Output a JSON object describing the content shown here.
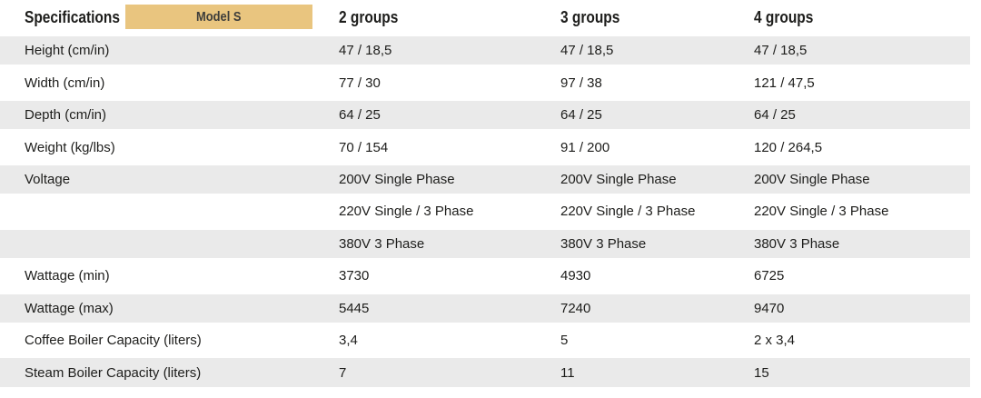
{
  "table": {
    "title": "Specifications",
    "badge_label": "Model S",
    "column_headers": [
      "2 groups",
      "3 groups",
      "4 groups"
    ],
    "rows": [
      {
        "label": "Height (cm/in)",
        "values": [
          "47 / 18,5",
          "47 / 18,5",
          "47 / 18,5"
        ],
        "shaded": true
      },
      {
        "label": "Width (cm/in)",
        "values": [
          "77 / 30",
          "97 / 38",
          "121 / 47,5"
        ],
        "shaded": false
      },
      {
        "label": "Depth (cm/in)",
        "values": [
          "64 / 25",
          "64 / 25",
          "64 / 25"
        ],
        "shaded": true
      },
      {
        "label": "Weight (kg/lbs)",
        "values": [
          "70 / 154",
          "91 / 200",
          "120 / 264,5"
        ],
        "shaded": false
      },
      {
        "label": "Voltage",
        "values": [
          "200V Single Phase",
          "200V Single Phase",
          "200V Single Phase"
        ],
        "shaded": true
      },
      {
        "label": "",
        "values": [
          "220V Single / 3 Phase",
          "220V Single / 3 Phase",
          "220V Single / 3 Phase"
        ],
        "shaded": false
      },
      {
        "label": "",
        "values": [
          "380V 3 Phase",
          "380V 3 Phase",
          "380V 3 Phase"
        ],
        "shaded": true
      },
      {
        "label": "Wattage (min)",
        "values": [
          "3730",
          "4930",
          "6725"
        ],
        "shaded": false
      },
      {
        "label": "Wattage (max)",
        "values": [
          "5445",
          "7240",
          "9470"
        ],
        "shaded": true
      },
      {
        "label": "Coffee Boiler Capacity (liters)",
        "values": [
          "3,4",
          "5",
          "2 x 3,4"
        ],
        "shaded": false
      },
      {
        "label": "Steam Boiler Capacity (liters)",
        "values": [
          "7",
          "11",
          "15"
        ],
        "shaded": true
      }
    ]
  },
  "colors": {
    "badge_bg": "#e9c57f",
    "row_shaded_bg": "#eaeaea",
    "text": "#1d1d1b"
  }
}
